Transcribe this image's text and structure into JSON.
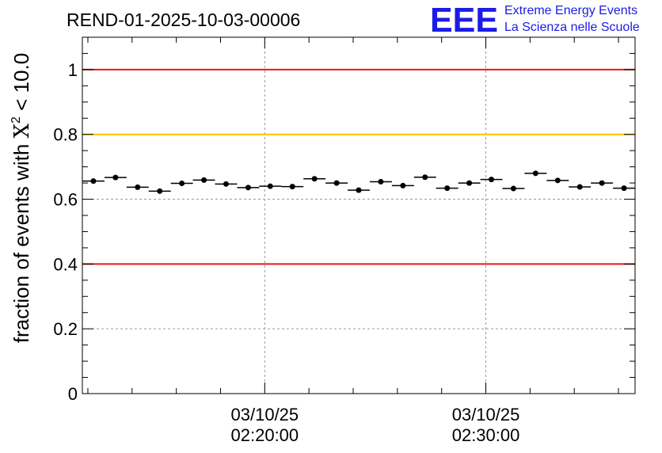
{
  "logo": {
    "mark": "EEE",
    "line1": "Extreme Energy Events",
    "line2": "La Scienza nelle Scuole",
    "color": "#1c1ce6"
  },
  "colors": {
    "threshold_red": "#e31a1c",
    "threshold_orange": "#ffc000",
    "grid": "#9a9a9a",
    "marker": "#000000"
  },
  "chart_data": {
    "type": "scatter",
    "title": "REND-01-2025-10-03-00006",
    "ylabel_prefix": "fraction of events with ",
    "ylabel_symbol": "X",
    "ylabel_superscript": "2",
    "ylabel_suffix": " < 10.0",
    "xlabel": "",
    "ylim": [
      0,
      1.1
    ],
    "yticks": [
      0,
      0.2,
      0.4,
      0.6,
      0.8,
      1
    ],
    "ytick_labels": [
      "0",
      "0.2",
      "0.4",
      "0.6",
      "0.8",
      "1"
    ],
    "xlim_minutes": [
      11.75,
      36.75
    ],
    "xticks": [
      {
        "minute": 20,
        "date": "03/10/25",
        "time": "02:20:00"
      },
      {
        "minute": 30,
        "date": "03/10/25",
        "time": "02:30:00"
      }
    ],
    "bin_width_minutes": 1,
    "x_minutes": [
      12.25,
      13.25,
      14.25,
      15.25,
      16.25,
      17.25,
      18.25,
      19.25,
      20.25,
      21.25,
      22.25,
      23.25,
      24.25,
      25.25,
      26.25,
      27.25,
      28.25,
      29.25,
      30.25,
      31.25,
      32.25,
      33.25,
      34.25,
      35.25,
      36.25
    ],
    "values": [
      0.656,
      0.667,
      0.637,
      0.625,
      0.649,
      0.659,
      0.647,
      0.636,
      0.64,
      0.639,
      0.663,
      0.65,
      0.628,
      0.654,
      0.642,
      0.668,
      0.634,
      0.65,
      0.661,
      0.633,
      0.68,
      0.658,
      0.638,
      0.65,
      0.634
    ],
    "grid": true,
    "hlines": [
      {
        "y": 1.0,
        "color": "#e31a1c"
      },
      {
        "y": 0.8,
        "color": "#ffc000"
      },
      {
        "y": 0.4,
        "color": "#e31a1c"
      }
    ]
  }
}
